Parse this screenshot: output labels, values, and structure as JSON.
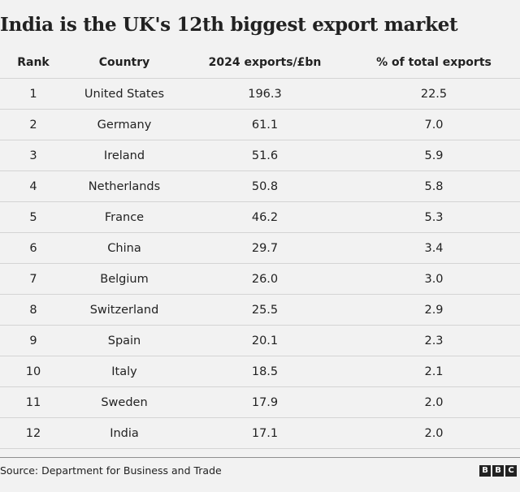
{
  "header": {
    "title": "India is the UK's 12th biggest export market"
  },
  "chart_data": {
    "type": "table",
    "title": "India is the UK's 12th biggest export market",
    "columns": [
      "Rank",
      "Country",
      "2024 exports/£bn",
      "% of total exports"
    ],
    "rows": [
      [
        "1",
        "United States",
        "196.3",
        "22.5"
      ],
      [
        "2",
        "Germany",
        "61.1",
        "7.0"
      ],
      [
        "3",
        "Ireland",
        "51.6",
        "5.9"
      ],
      [
        "4",
        "Netherlands",
        "50.8",
        "5.8"
      ],
      [
        "5",
        "France",
        "46.2",
        "5.3"
      ],
      [
        "6",
        "China",
        "29.7",
        "3.4"
      ],
      [
        "7",
        "Belgium",
        "26.0",
        "3.0"
      ],
      [
        "8",
        "Switzerland",
        "25.5",
        "2.9"
      ],
      [
        "9",
        "Spain",
        "20.1",
        "2.3"
      ],
      [
        "10",
        "Italy",
        "18.5",
        "2.1"
      ],
      [
        "11",
        "Sweden",
        "17.9",
        "2.0"
      ],
      [
        "12",
        "India",
        "17.1",
        "2.0"
      ]
    ]
  },
  "footer": {
    "source": "Source: Department for Business and Trade",
    "logo_letters": [
      "B",
      "B",
      "C"
    ]
  }
}
